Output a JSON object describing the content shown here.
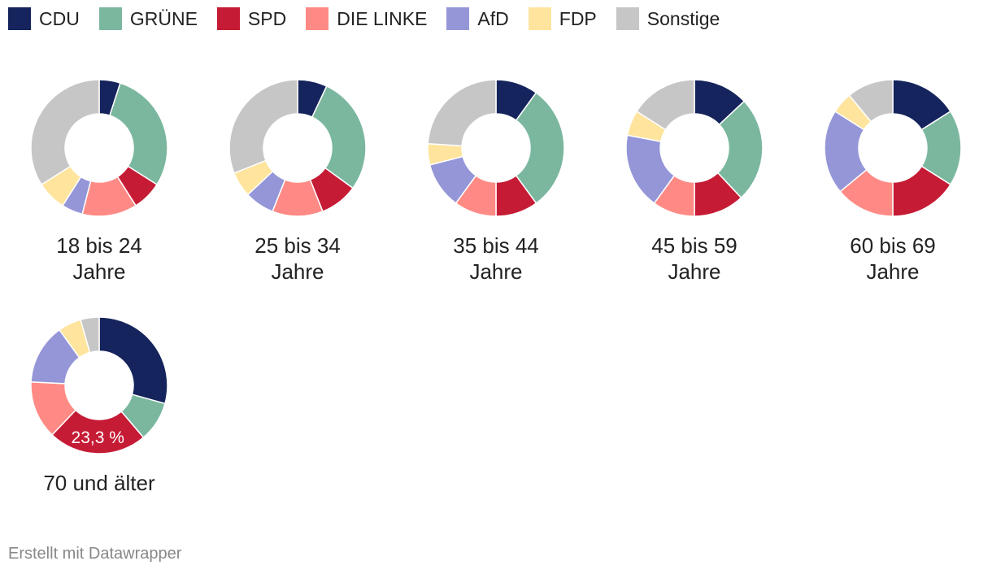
{
  "legend": [
    {
      "name": "CDU",
      "color": "#15245c"
    },
    {
      "name": "GRÜNE",
      "color": "#7bb79f"
    },
    {
      "name": "SPD",
      "color": "#c51b35"
    },
    {
      "name": "DIE LINKE",
      "color": "#ff8a85"
    },
    {
      "name": "AfD",
      "color": "#9496d8"
    },
    {
      "name": "FDP",
      "color": "#fee49d"
    },
    {
      "name": "Sonstige",
      "color": "#c6c6c6"
    }
  ],
  "chart_data": [
    {
      "type": "pie",
      "title": "18 bis 24 Jahre",
      "title_lines": [
        "18 bis 24",
        "Jahre"
      ],
      "categories": [
        "CDU",
        "GRÜNE",
        "SPD",
        "DIE LINKE",
        "AfD",
        "FDP",
        "Sonstige"
      ],
      "values": [
        5,
        29,
        7,
        13,
        5,
        7,
        34
      ]
    },
    {
      "type": "pie",
      "title": "25 bis 34 Jahre",
      "title_lines": [
        "25 bis 34",
        "Jahre"
      ],
      "categories": [
        "CDU",
        "GRÜNE",
        "SPD",
        "DIE LINKE",
        "AfD",
        "FDP",
        "Sonstige"
      ],
      "values": [
        7,
        28,
        9,
        12,
        7,
        6,
        31
      ]
    },
    {
      "type": "pie",
      "title": "35 bis 44 Jahre",
      "title_lines": [
        "35 bis 44",
        "Jahre"
      ],
      "categories": [
        "CDU",
        "GRÜNE",
        "SPD",
        "DIE LINKE",
        "AfD",
        "FDP",
        "Sonstige"
      ],
      "values": [
        10,
        30,
        10,
        10,
        11,
        5,
        24
      ]
    },
    {
      "type": "pie",
      "title": "45 bis 59 Jahre",
      "title_lines": [
        "45 bis 59",
        "Jahre"
      ],
      "categories": [
        "CDU",
        "GRÜNE",
        "SPD",
        "DIE LINKE",
        "AfD",
        "FDP",
        "Sonstige"
      ],
      "values": [
        13,
        25,
        12,
        10,
        18,
        6,
        16
      ]
    },
    {
      "type": "pie",
      "title": "60 bis 69 Jahre",
      "title_lines": [
        "60 bis 69",
        "Jahre"
      ],
      "categories": [
        "CDU",
        "GRÜNE",
        "SPD",
        "DIE LINKE",
        "AfD",
        "FDP",
        "Sonstige"
      ],
      "values": [
        16,
        18,
        16,
        14,
        20,
        5,
        11
      ]
    },
    {
      "type": "pie",
      "title": "70 und älter",
      "title_lines": [
        "70 und älter"
      ],
      "categories": [
        "CDU",
        "GRÜNE",
        "SPD",
        "DIE LINKE",
        "AfD",
        "FDP",
        "Sonstige"
      ],
      "values": [
        29.3,
        9.5,
        23.3,
        13.7,
        14.3,
        5.5,
        4.4
      ],
      "annotations": [
        {
          "category": "SPD",
          "text": "23,3 %"
        }
      ]
    }
  ],
  "footer": "Erstellt mit Datawrapper"
}
